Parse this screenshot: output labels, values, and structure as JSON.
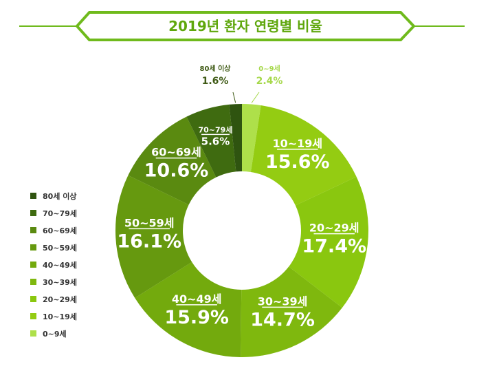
{
  "chart_data": {
    "type": "donut",
    "title": "2019년 환자 연령별 비율",
    "unit": "%",
    "categories": [
      "0~9세",
      "10~19세",
      "20~29세",
      "30~39세",
      "40~49세",
      "50~59세",
      "60~69세",
      "70~79세",
      "80세 이상"
    ],
    "values": [
      2.4,
      15.6,
      17.4,
      14.7,
      15.9,
      16.1,
      10.6,
      5.6,
      1.6
    ],
    "value_labels": [
      "2.4%",
      "15.6%",
      "17.4%",
      "14.7%",
      "15.9%",
      "16.1%",
      "10.6%",
      "5.6%",
      "1.6%"
    ],
    "colors": [
      "#aee04a",
      "#94cc12",
      "#8ac70f",
      "#7fb80e",
      "#73aa0d",
      "#66990f",
      "#5a8a10",
      "#3f6b10",
      "#2f5410"
    ],
    "legend": {
      "position": "left",
      "order": [
        "80세 이상",
        "70~79세",
        "60~69세",
        "50~59세",
        "40~49세",
        "30~39세",
        "20~29세",
        "10~19세",
        "0~9세"
      ]
    },
    "start_angle": "12 o'clock",
    "direction": "clockwise"
  },
  "colors": {
    "accent": "#6fba1c",
    "title_text": "#5fa70d",
    "label_text": "#ffffff",
    "outside_label_dark": "#3f5a15",
    "outside_label_light": "#a6d84b"
  }
}
